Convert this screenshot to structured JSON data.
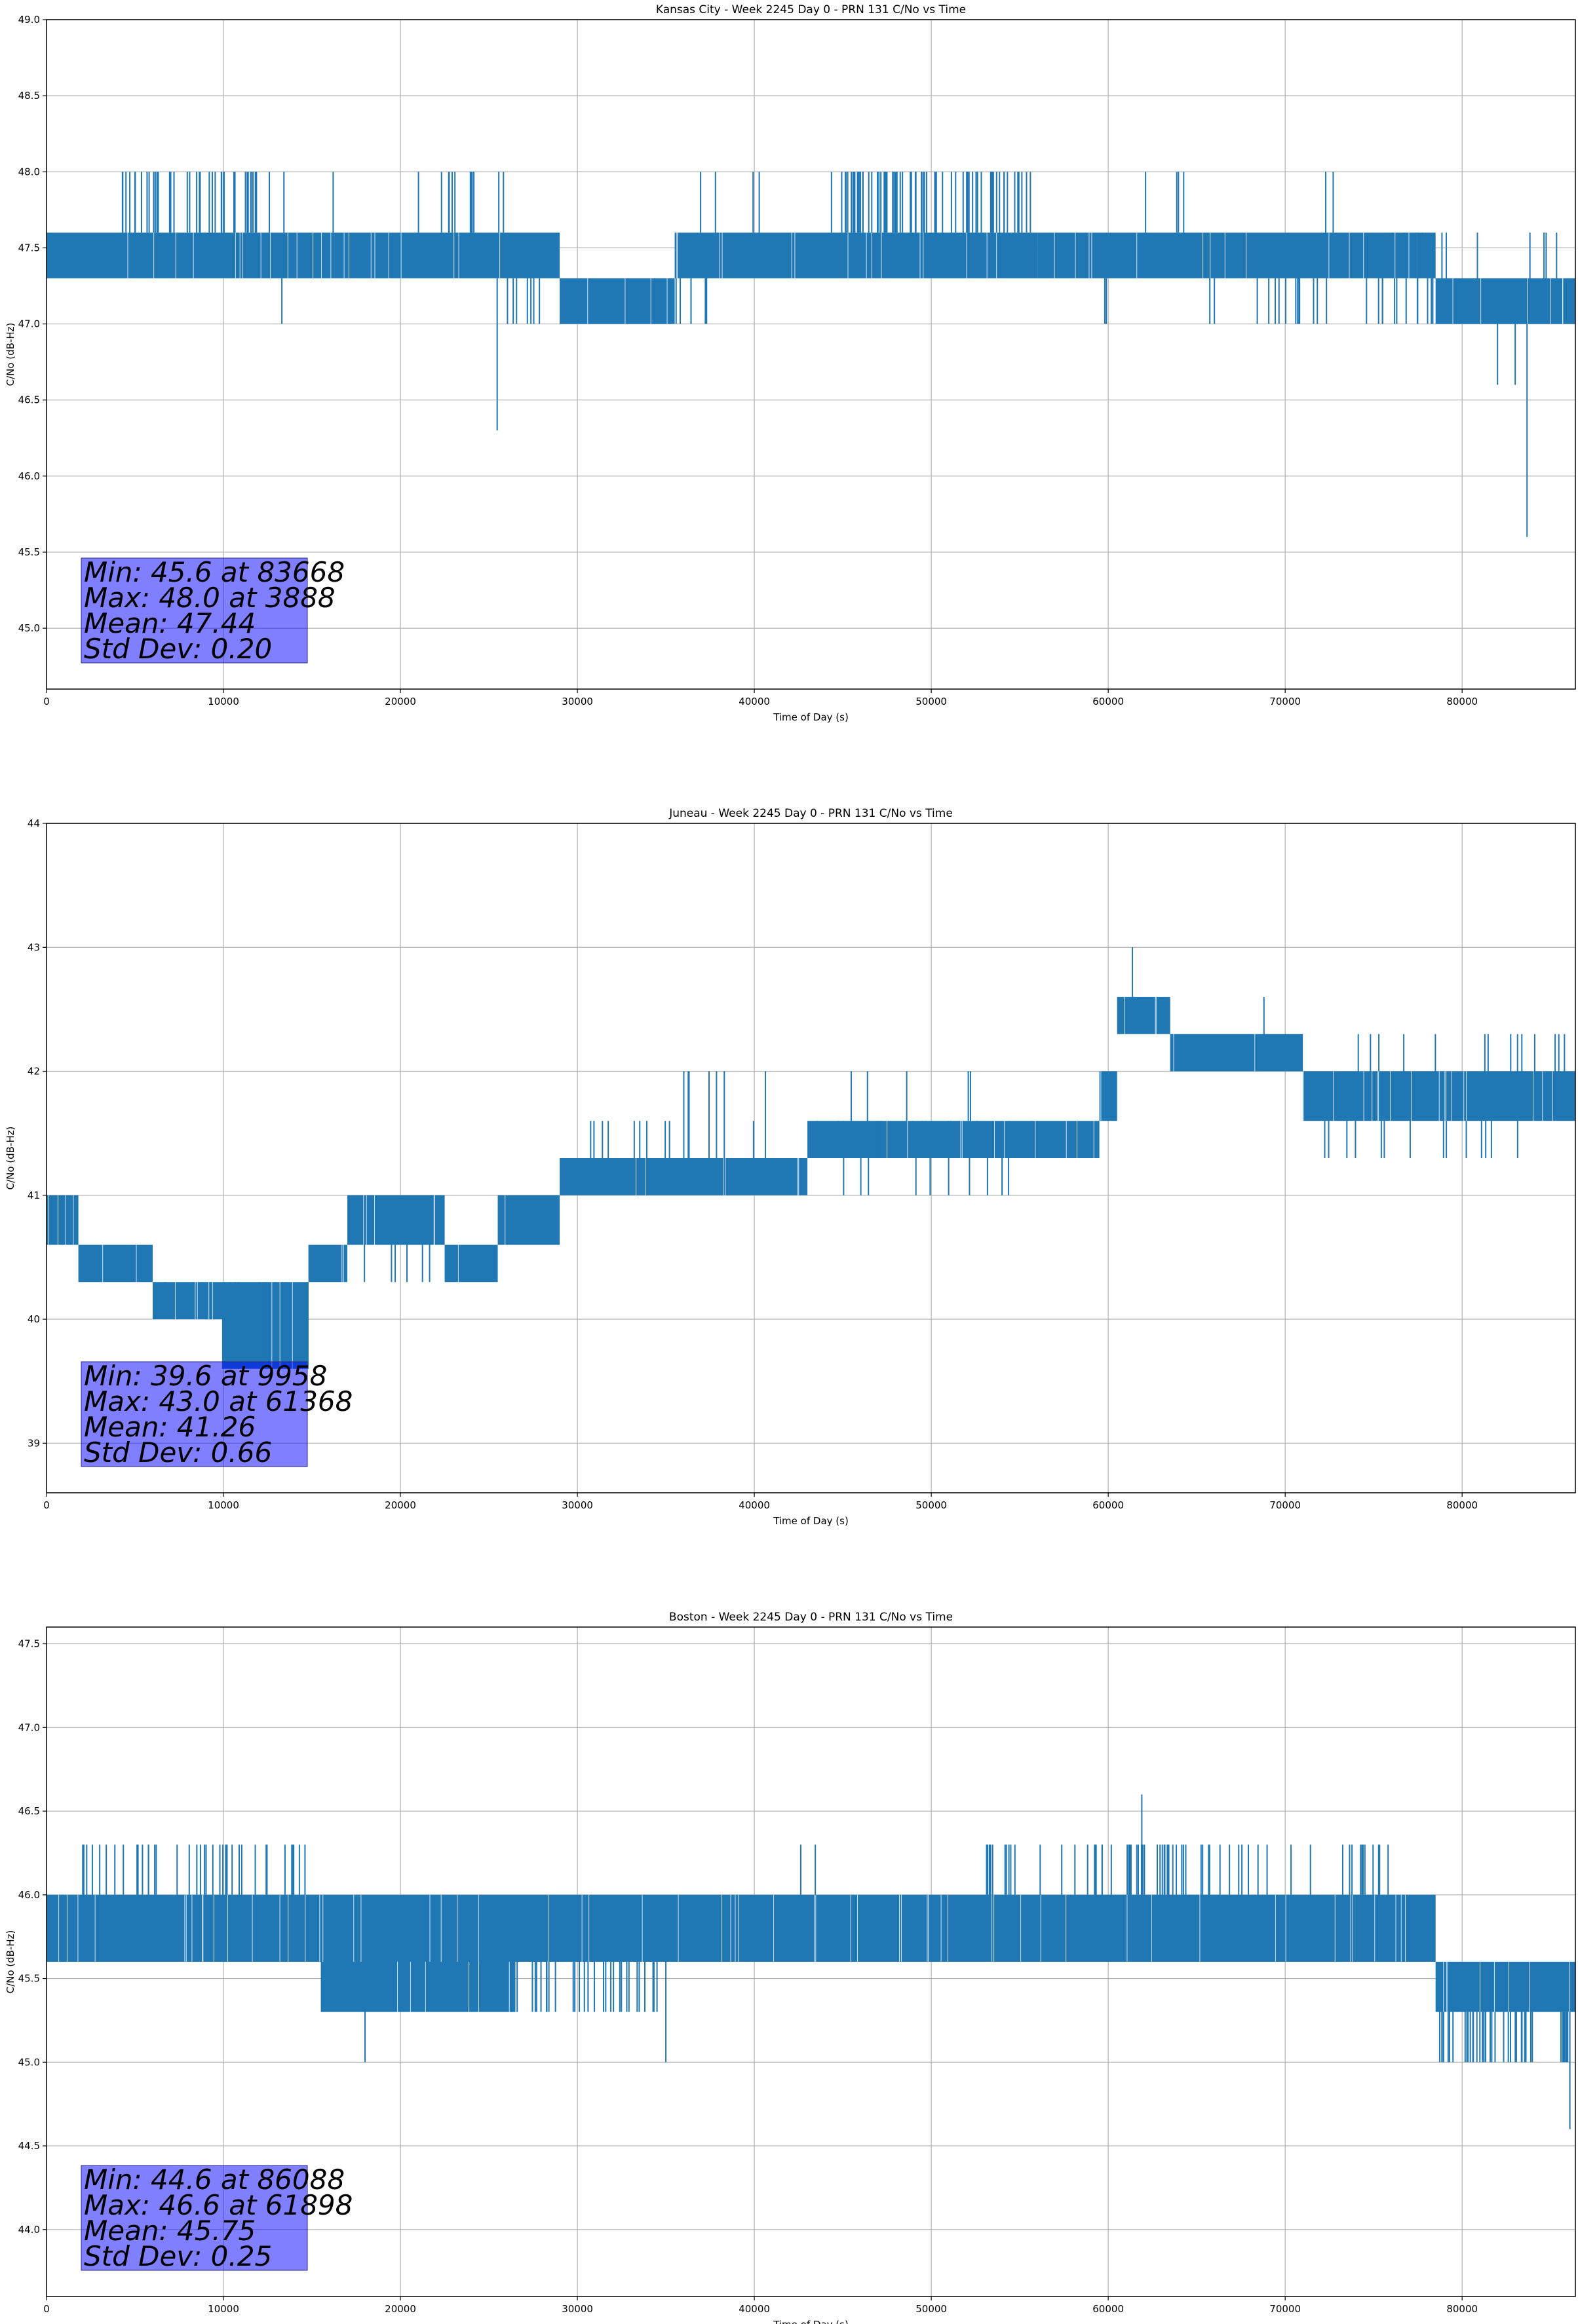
{
  "chart_data": [
    {
      "type": "line",
      "title": "Kansas City - Week 2245 Day 0 - PRN 131 C/No vs Time",
      "xlabel": "Time of Day (s)",
      "ylabel": "C/No (dB-Hz)",
      "xlim": [
        0,
        86400
      ],
      "ylim": [
        44.6,
        49.0
      ],
      "xticks": [
        0,
        10000,
        20000,
        30000,
        40000,
        50000,
        60000,
        70000,
        80000
      ],
      "yticks": [
        45.0,
        45.5,
        46.0,
        46.5,
        47.0,
        47.5,
        48.0,
        48.5,
        49.0
      ],
      "ytick_decimals": 1,
      "grid": true,
      "series": [
        {
          "color": "#1f77b4",
          "band_segments": [
            {
              "x": [
                0,
                29000
              ],
              "low": 47.3,
              "high": 47.6
            },
            {
              "x": [
                29000,
                35500
              ],
              "low": 47.0,
              "high": 47.3
            },
            {
              "x": [
                35500,
                56000
              ],
              "low": 47.3,
              "high": 47.6
            },
            {
              "x": [
                56000,
                78500
              ],
              "low": 47.3,
              "high": 47.6
            },
            {
              "x": [
                78500,
                86400
              ],
              "low": 47.0,
              "high": 47.3
            }
          ],
          "notes_events": [
            {
              "x": [
                3888,
                13500
              ],
              "value": 48.0,
              "count": 40
            },
            {
              "x": 16200,
              "value": 48.0
            },
            {
              "x": [
                19800,
                26000
              ],
              "value": 48.0,
              "count": 12
            },
            {
              "x": 13300,
              "value": 47.0
            },
            {
              "x": 25468,
              "value": 46.3
            },
            {
              "x": [
                26000,
                37500
              ],
              "value": 47.0,
              "count": 30
            },
            {
              "x": [
                36500,
                45000
              ],
              "value": 48.0,
              "count": 6
            },
            {
              "x": [
                45000,
                55800
              ],
              "value": 48.0,
              "count": 70
            },
            {
              "x": [
                58000,
                62000
              ],
              "value": 47.0,
              "count": 2
            },
            {
              "x": [
                62000,
                65500
              ],
              "value": 48.0,
              "count": 4
            },
            {
              "x": [
                64000,
                78000
              ],
              "value": 47.0,
              "count": 24
            },
            {
              "x": [
                72000,
                73000
              ],
              "value": 48.0,
              "count": 2
            },
            {
              "x": [
                76000,
                86400
              ],
              "value": 47.6,
              "count": 12
            },
            {
              "x": 82000,
              "value": 46.6
            },
            {
              "x": 83000,
              "value": 46.6
            },
            {
              "x": 83668,
              "value": 45.6
            },
            {
              "x": [
                78000,
                86400
              ],
              "value": 47.0,
              "count": 40
            }
          ]
        }
      ],
      "stats": [
        "Min: 45.6 at 83668",
        "Max: 48.0 at 3888",
        "Mean: 47.44",
        "Std Dev: 0.20"
      ]
    },
    {
      "type": "line",
      "title": "Juneau - Week 2245 Day 0 - PRN 131 C/No vs Time",
      "xlabel": "Time of Day (s)",
      "ylabel": "C/No (dB-Hz)",
      "xlim": [
        0,
        86400
      ],
      "ylim": [
        38.6,
        44.0
      ],
      "xticks": [
        0,
        10000,
        20000,
        30000,
        40000,
        50000,
        60000,
        70000,
        80000
      ],
      "yticks": [
        39,
        40,
        41,
        42,
        43,
        44
      ],
      "ytick_decimals": 0,
      "grid": true,
      "series": [
        {
          "color": "#1f77b4",
          "band_segments": [
            {
              "x": [
                0,
                1800
              ],
              "low": 40.6,
              "high": 41.0
            },
            {
              "x": [
                1800,
                6000
              ],
              "low": 40.3,
              "high": 40.6
            },
            {
              "x": [
                6000,
                10000
              ],
              "low": 40.0,
              "high": 40.3
            },
            {
              "x": [
                10000,
                14800
              ],
              "low": 39.6,
              "high": 40.3
            },
            {
              "x": [
                14800,
                17000
              ],
              "low": 40.3,
              "high": 40.6
            },
            {
              "x": [
                17000,
                22500
              ],
              "low": 40.6,
              "high": 41.0
            },
            {
              "x": [
                22500,
                25500
              ],
              "low": 40.3,
              "high": 40.6
            },
            {
              "x": [
                25500,
                29000
              ],
              "low": 40.6,
              "high": 41.0
            },
            {
              "x": [
                29000,
                43000
              ],
              "low": 41.0,
              "high": 41.3
            },
            {
              "x": [
                43000,
                59500
              ],
              "low": 41.3,
              "high": 41.6
            },
            {
              "x": [
                59500,
                60500
              ],
              "low": 41.6,
              "high": 42.0
            },
            {
              "x": [
                60500,
                63500
              ],
              "low": 42.3,
              "high": 42.6
            },
            {
              "x": [
                63500,
                71000
              ],
              "low": 42.0,
              "high": 42.3
            },
            {
              "x": [
                71000,
                86400
              ],
              "low": 41.6,
              "high": 42.0
            }
          ],
          "notes_events": [
            {
              "x": 9958,
              "value": 39.6
            },
            {
              "x": 61368,
              "value": 43.0
            },
            {
              "x": 68800,
              "value": 42.6
            },
            {
              "x": [
                30000,
                59000
              ],
              "value": 41.6,
              "count": 30
            },
            {
              "x": [
                36000,
                58000
              ],
              "value": 42.0,
              "count": 12
            },
            {
              "x": [
                37000,
                56000
              ],
              "value": 41.0,
              "count": 20
            },
            {
              "x": [
                6000,
                22000
              ],
              "value": 40.3,
              "count": 30
            },
            {
              "x": [
                72000,
                86400
              ],
              "value": 42.3,
              "count": 14
            },
            {
              "x": [
                72000,
                84000
              ],
              "value": 41.3,
              "count": 14
            }
          ]
        }
      ],
      "stats": [
        "Min: 39.6 at 9958",
        "Max: 43.0 at 61368",
        "Mean: 41.26",
        "Std Dev: 0.66"
      ]
    },
    {
      "type": "line",
      "title": "Boston - Week 2245 Day 0 - PRN 131 C/No vs Time",
      "xlabel": "Time of Day (s)",
      "ylabel": "C/No (dB-Hz)",
      "xlim": [
        0,
        86400
      ],
      "ylim": [
        43.6,
        47.6
      ],
      "xticks": [
        0,
        10000,
        20000,
        30000,
        40000,
        50000,
        60000,
        70000,
        80000
      ],
      "yticks": [
        44.0,
        44.5,
        45.0,
        45.5,
        46.0,
        46.5,
        47.0,
        47.5
      ],
      "ytick_decimals": 1,
      "grid": true,
      "series": [
        {
          "color": "#1f77b4",
          "band_segments": [
            {
              "x": [
                0,
                15500
              ],
              "low": 45.6,
              "high": 46.0
            },
            {
              "x": [
                15500,
                26500
              ],
              "low": 45.3,
              "high": 45.6
            },
            {
              "x": [
                15500,
                78500
              ],
              "low": 45.6,
              "high": 46.0
            },
            {
              "x": [
                78500,
                86400
              ],
              "low": 45.3,
              "high": 45.6
            }
          ],
          "notes_events": [
            {
              "x": [
                2000,
                15000
              ],
              "value": 46.3,
              "count": 40
            },
            {
              "x": [
                26000,
                35000
              ],
              "value": 45.3,
              "count": 30
            },
            {
              "x": 18000,
              "value": 45.0
            },
            {
              "x": 35000,
              "value": 45.0
            },
            {
              "x": [
                38000,
                44000
              ],
              "value": 46.3,
              "count": 2
            },
            {
              "x": [
                53000,
                61000
              ],
              "value": 46.3,
              "count": 24
            },
            {
              "x": [
                61000,
                66000
              ],
              "value": 46.3,
              "count": 30
            },
            {
              "x": 61898,
              "value": 46.6
            },
            {
              "x": [
                66000,
                76000
              ],
              "value": 46.3,
              "count": 20
            },
            {
              "x": [
                78000,
                86000
              ],
              "value": 45.0,
              "count": 40
            },
            {
              "x": 86088,
              "value": 44.6
            }
          ]
        }
      ],
      "stats": [
        "Min: 44.6 at 86088",
        "Max: 46.6 at 61898",
        "Mean: 45.75",
        "Std Dev: 0.25"
      ]
    }
  ]
}
